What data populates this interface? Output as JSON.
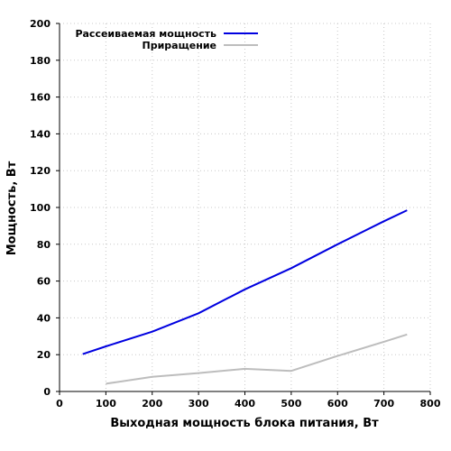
{
  "chart_data": {
    "type": "line",
    "title": "",
    "xlabel": "Выходная мощность блока питания, Вт",
    "ylabel": "Мощность, Вт",
    "xlim": [
      0,
      800
    ],
    "ylim": [
      0,
      200
    ],
    "x_ticks": [
      0,
      100,
      200,
      300,
      400,
      500,
      600,
      700,
      800
    ],
    "y_ticks": [
      0,
      20,
      40,
      60,
      80,
      100,
      120,
      140,
      160,
      180,
      200
    ],
    "grid": true,
    "legend_position": "top-left",
    "series": [
      {
        "name": "Рассеиваемая мощность",
        "color": "#0000e0",
        "x": [
          50,
          100,
          200,
          300,
          400,
          500,
          600,
          700,
          750
        ],
        "y": [
          20.3,
          24.5,
          32.5,
          42.5,
          55.5,
          67,
          80,
          92.5,
          98.5
        ]
      },
      {
        "name": "Приращение",
        "color": "#bdbdbd",
        "x": [
          100,
          200,
          300,
          400,
          500,
          600,
          700,
          750
        ],
        "y": [
          4.2,
          8,
          10,
          12.3,
          11.2,
          19.3,
          27,
          31
        ]
      }
    ]
  }
}
